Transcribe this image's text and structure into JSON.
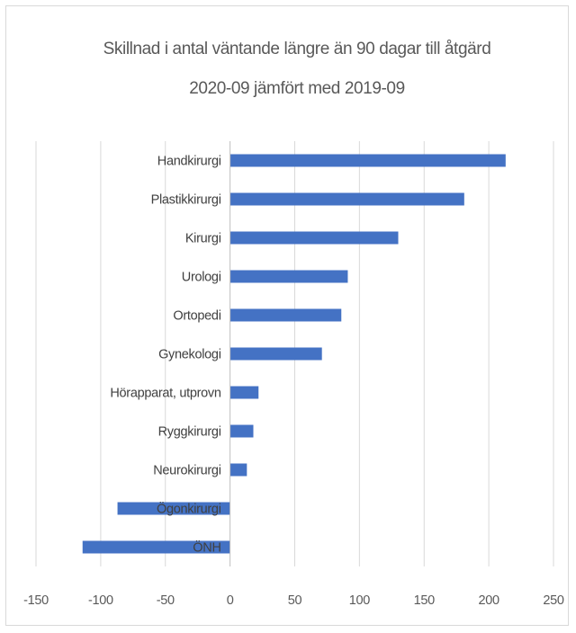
{
  "chart_data": {
    "type": "bar",
    "orientation": "horizontal",
    "title": "Skillnad i antal väntande längre än 90 dagar till åtgärd",
    "subtitle": "2020-09 jämfört med 2019-09",
    "categories": [
      "Handkirurgi",
      "Plastikkirurgi",
      "Kirurgi",
      "Urologi",
      "Ortopedi",
      "Gynekologi",
      "Hörapparat, utprovn",
      "Ryggkirurgi",
      "Neurokirurgi",
      "Ögonkirurgi",
      "ÖNH"
    ],
    "values": [
      213,
      181,
      130,
      91,
      86,
      71,
      22,
      18,
      13,
      -87,
      -114
    ],
    "xlim": [
      -150,
      250
    ],
    "xticks": [
      -150,
      -100,
      -50,
      0,
      50,
      100,
      150,
      200,
      250
    ],
    "xtick_labels": [
      "-150",
      "-100",
      "-50",
      "0",
      "50",
      "100",
      "150",
      "200",
      "250"
    ],
    "xlabel": "",
    "ylabel": "",
    "grid": "vertical",
    "legend": "none",
    "color": "#4472c4"
  }
}
